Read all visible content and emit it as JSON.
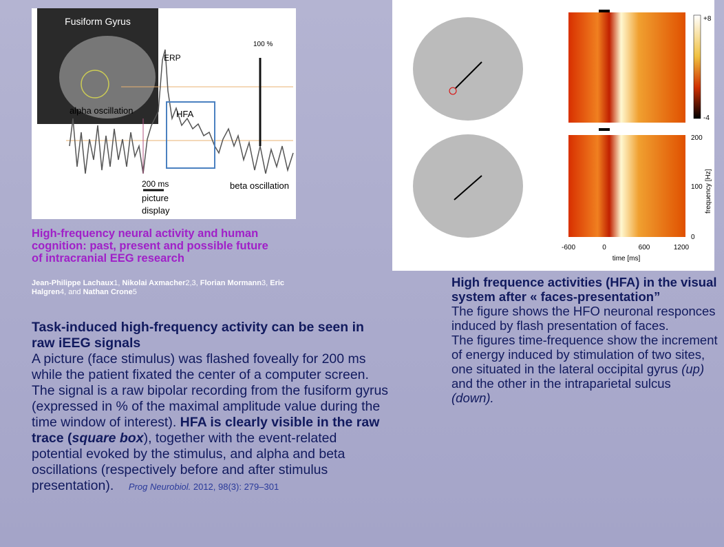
{
  "left_figure": {
    "inset_label": "Fusiform Gyrus",
    "erp": "ERP",
    "scale": "100 %",
    "alpha": "alpha oscillation",
    "hfa": "HFA",
    "time_bar": "200 ms",
    "picture_display": [
      "picture",
      "display"
    ],
    "beta": "beta oscillation"
  },
  "left_caption": {
    "title": "High-frequency neural activity and human cognition: past, present and possible future of intracranial EEG research",
    "authors": [
      "Jean-Philippe Lachaux",
      "1, ",
      "Nikolai Axmacher",
      "2,3, ",
      "Florian Mormann",
      "3, ",
      "Eric Halgren",
      "4, and ",
      "Nathan Crone",
      "5"
    ]
  },
  "right_figure": {
    "colorbar_max": "+8",
    "colorbar_min": "-4",
    "y_ticks": [
      "200",
      "100",
      "0"
    ],
    "y_label": "frequency [Hz]",
    "x_ticks": [
      "-600",
      "0",
      "600",
      "1200"
    ],
    "x_label": "time [ms]"
  },
  "right_caption": {
    "title": "High frequence activities (HFA) in the visual system after « faces-presentation”",
    "body": [
      "The figure shows the HFO neuronal responces induced by flash presentation of faces.",
      "The figures time-frequence show the increment of energy induced by stimulation of two sites, one situated in the lateral occipital gyrus ",
      "(up)",
      " and the other in the intraparietal sulcus ",
      "(down)."
    ]
  },
  "left_text": {
    "heading": "Task-induced high-frequency activity can be seen in raw iEEG signals",
    "body": [
      "A picture (face stimulus) was flashed foveally for 200 ms while the patient fixated the center of a computer screen. The signal is a raw bipolar recording from the fusiform gyrus (expressed in % of the maximal amplitude value during the time window of interest). ",
      "HFA is clearly visible in the raw trace (",
      "square box",
      "), together with the event-related potential evoked by the stimulus, and alpha and beta oscillations (respectively before and after stimulus presentation)."
    ],
    "reference": {
      "journal": "Prog Neurobiol.",
      "details": " 2012, 98(3): 279–301"
    }
  }
}
